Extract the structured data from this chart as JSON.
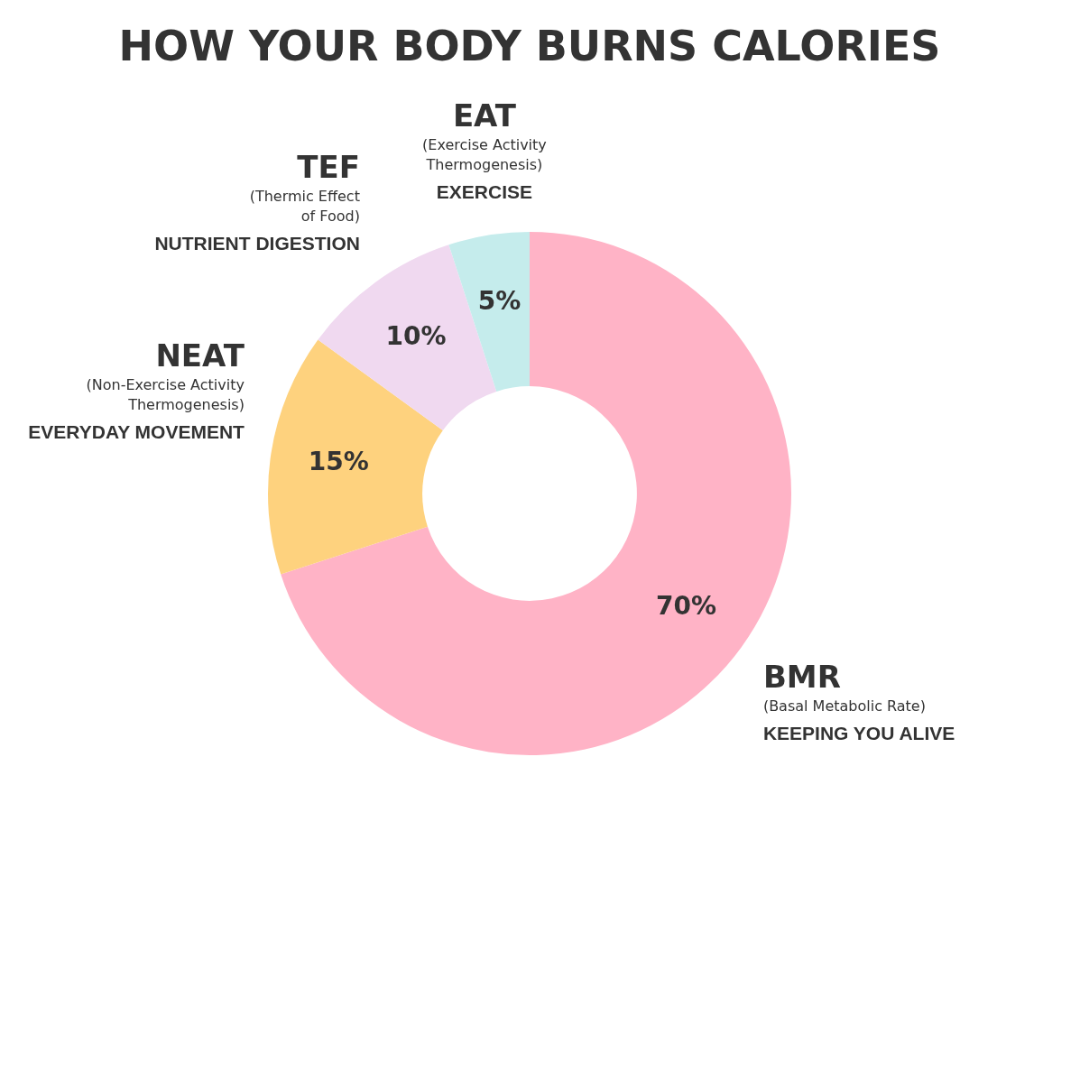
{
  "chart_data": {
    "type": "donut",
    "title": "HOW YOUR BODY BURNS CALORIES",
    "categories": [
      "BMR",
      "NEAT",
      "TEF",
      "EAT"
    ],
    "values": [
      70,
      15,
      10,
      5
    ],
    "colors": [
      "#ffb3c6",
      "#fed27e",
      "#f0d9f0",
      "#c5ecec"
    ],
    "value_labels": [
      "70%",
      "15%",
      "10%",
      "5%"
    ],
    "legend": false,
    "annotations": [
      {
        "text": "(Basal Metabolic Rate)",
        "x": "BMR"
      },
      {
        "text": "KEEPING YOU ALIVE",
        "x": "BMR"
      },
      {
        "text": "(Non-Exercise Activity\nThermogenesis)",
        "x": "NEAT"
      },
      {
        "text": "EVERYDAY MOVEMENT",
        "x": "NEAT"
      },
      {
        "text": "(Thermic Effect\nof Food)",
        "x": "TEF"
      },
      {
        "text": "NUTRIENT DIGESTION",
        "x": "TEF"
      },
      {
        "text": "(Exercise Activity\nThermogenesis)",
        "x": "EAT"
      },
      {
        "text": "EXERCISE",
        "x": "EAT"
      }
    ]
  }
}
